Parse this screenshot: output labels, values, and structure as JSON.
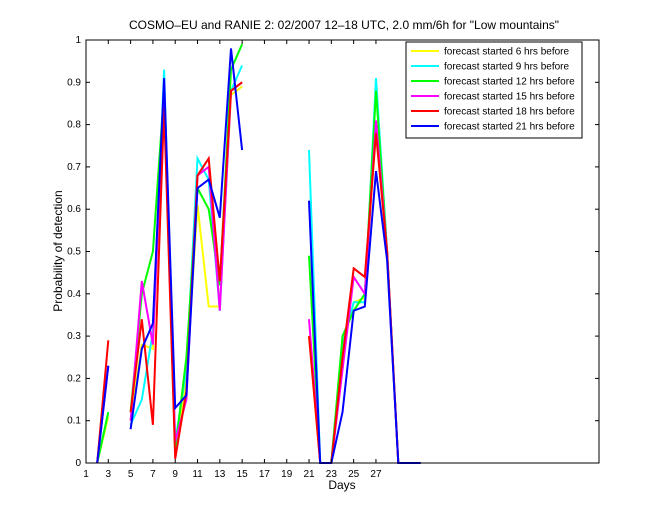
{
  "chart_data": {
    "type": "line",
    "title": "COSMO–EU and RANIE 2: 02/2007 12–18 UTC, 2.0 mm/6h for \"Low mountains\"",
    "xlabel": "Days",
    "ylabel": "Probability of detection",
    "xlim": [
      1,
      47
    ],
    "ylim": [
      0,
      1
    ],
    "xticks": [
      1,
      3,
      5,
      7,
      9,
      11,
      13,
      15,
      17,
      19,
      21,
      23,
      25,
      27
    ],
    "xtick_labels": [
      "1",
      "3",
      "5",
      "7",
      "9",
      "11",
      "13",
      "15",
      "17",
      "19",
      "21",
      "23",
      "25",
      "27"
    ],
    "yticks": [
      0,
      0.1,
      0.2,
      0.3,
      0.4,
      0.5,
      0.6,
      0.7,
      0.8,
      0.9,
      1
    ],
    "ytick_labels": [
      "0",
      "0.1",
      "0.2",
      "0.3",
      "0.4",
      "0.5",
      "0.6",
      "0.7",
      "0.8",
      "0.9",
      "1"
    ],
    "grid": false,
    "legend_position": "top-right",
    "series": [
      {
        "name": "forecast started 6 hrs before",
        "color": "#ffff00",
        "segments": [
          [
            [
              2,
              0
            ],
            [
              3,
              0.11
            ]
          ],
          [
            [
              5,
              0.1
            ],
            [
              6,
              0.28
            ],
            [
              7,
              0.27
            ],
            [
              8,
              0.9
            ],
            [
              9,
              0.02
            ],
            [
              10,
              0.2
            ],
            [
              11,
              0.61
            ],
            [
              12,
              0.37
            ],
            [
              13,
              0.37
            ],
            [
              14,
              0.87
            ],
            [
              15,
              0.89
            ]
          ],
          [
            [
              21,
              0.3
            ],
            [
              22,
              0
            ],
            [
              23,
              0
            ],
            [
              24,
              0.27
            ],
            [
              25,
              0.38
            ],
            [
              26,
              0.39
            ],
            [
              27,
              0.8
            ],
            [
              28,
              0.5
            ],
            [
              29,
              0
            ],
            [
              31,
              0
            ]
          ]
        ]
      },
      {
        "name": "forecast started 9 hrs before",
        "color": "#00ffff",
        "segments": [
          [
            [
              2,
              0
            ],
            [
              3,
              0.12
            ]
          ],
          [
            [
              5,
              0.09
            ],
            [
              6,
              0.15
            ],
            [
              7,
              0.31
            ],
            [
              8,
              0.93
            ],
            [
              9,
              0.05
            ],
            [
              10,
              0.22
            ],
            [
              11,
              0.72
            ],
            [
              12,
              0.67
            ],
            [
              13,
              0.36
            ],
            [
              14,
              0.88
            ],
            [
              15,
              0.94
            ]
          ],
          [
            [
              21,
              0.74
            ],
            [
              22,
              0
            ],
            [
              23,
              0
            ],
            [
              24,
              0.28
            ],
            [
              25,
              0.38
            ],
            [
              26,
              0.38
            ],
            [
              27,
              0.91
            ],
            [
              28,
              0.5
            ],
            [
              29,
              0
            ],
            [
              31,
              0
            ]
          ]
        ]
      },
      {
        "name": "forecast started 12 hrs before",
        "color": "#00ff00",
        "segments": [
          [
            [
              2,
              0
            ],
            [
              3,
              0.12
            ]
          ],
          [
            [
              5,
              0.12
            ],
            [
              6,
              0.4
            ],
            [
              7,
              0.5
            ],
            [
              8,
              0.88
            ],
            [
              9,
              0.03
            ],
            [
              10,
              0.25
            ],
            [
              11,
              0.65
            ],
            [
              12,
              0.6
            ],
            [
              13,
              0.42
            ],
            [
              14,
              0.93
            ],
            [
              15,
              0.99
            ]
          ],
          [
            [
              21,
              0.49
            ],
            [
              22,
              0
            ],
            [
              23,
              0
            ],
            [
              24,
              0.3
            ],
            [
              25,
              0.36
            ],
            [
              26,
              0.4
            ],
            [
              27,
              0.88
            ],
            [
              28,
              0.5
            ],
            [
              29,
              0
            ],
            [
              31,
              0
            ]
          ]
        ]
      },
      {
        "name": "forecast started 15 hrs before",
        "color": "#ff00ff",
        "segments": [
          [
            [
              2,
              0
            ],
            [
              3,
              0.23
            ]
          ],
          [
            [
              5,
              0.1
            ],
            [
              6,
              0.43
            ],
            [
              7,
              0.28
            ],
            [
              8,
              0.9
            ],
            [
              9,
              0.05
            ],
            [
              10,
              0.15
            ],
            [
              11,
              0.68
            ],
            [
              12,
              0.7
            ],
            [
              13,
              0.36
            ],
            [
              14,
              0.88
            ],
            [
              15,
              0.9
            ]
          ],
          [
            [
              21,
              0.34
            ],
            [
              22,
              0
            ],
            [
              23,
              0
            ],
            [
              24,
              0.22
            ],
            [
              25,
              0.44
            ],
            [
              26,
              0.4
            ],
            [
              27,
              0.81
            ],
            [
              28,
              0.5
            ],
            [
              29,
              0
            ],
            [
              31,
              0
            ]
          ]
        ]
      },
      {
        "name": "forecast started 18 hrs before",
        "color": "#ff0000",
        "segments": [
          [
            [
              2,
              0
            ],
            [
              3,
              0.29
            ]
          ],
          [
            [
              5,
              0.12
            ],
            [
              6,
              0.34
            ],
            [
              7,
              0.09
            ],
            [
              8,
              0.84
            ],
            [
              9,
              0.01
            ],
            [
              10,
              0.17
            ],
            [
              11,
              0.68
            ],
            [
              12,
              0.72
            ],
            [
              13,
              0.43
            ],
            [
              14,
              0.88
            ],
            [
              15,
              0.9
            ]
          ],
          [
            [
              21,
              0.3
            ],
            [
              22,
              0
            ],
            [
              23,
              0
            ],
            [
              24,
              0.25
            ],
            [
              25,
              0.46
            ],
            [
              26,
              0.44
            ],
            [
              27,
              0.78
            ],
            [
              28,
              0.5
            ],
            [
              29,
              0
            ],
            [
              31,
              0
            ]
          ]
        ]
      },
      {
        "name": "forecast started 21 hrs before",
        "color": "#0000ff",
        "segments": [
          [
            [
              2,
              0
            ],
            [
              3,
              0.23
            ]
          ],
          [
            [
              5,
              0.08
            ],
            [
              6,
              0.27
            ],
            [
              7,
              0.33
            ],
            [
              8,
              0.91
            ],
            [
              9,
              0.13
            ],
            [
              10,
              0.16
            ],
            [
              11,
              0.65
            ],
            [
              12,
              0.67
            ],
            [
              13,
              0.58
            ],
            [
              14,
              0.98
            ],
            [
              15,
              0.74
            ]
          ],
          [
            [
              21,
              0.62
            ],
            [
              22,
              0
            ],
            [
              23,
              0
            ],
            [
              24,
              0.12
            ],
            [
              25,
              0.36
            ],
            [
              26,
              0.37
            ],
            [
              27,
              0.69
            ],
            [
              28,
              0.48
            ],
            [
              29,
              0
            ],
            [
              31,
              0
            ]
          ]
        ]
      }
    ]
  }
}
